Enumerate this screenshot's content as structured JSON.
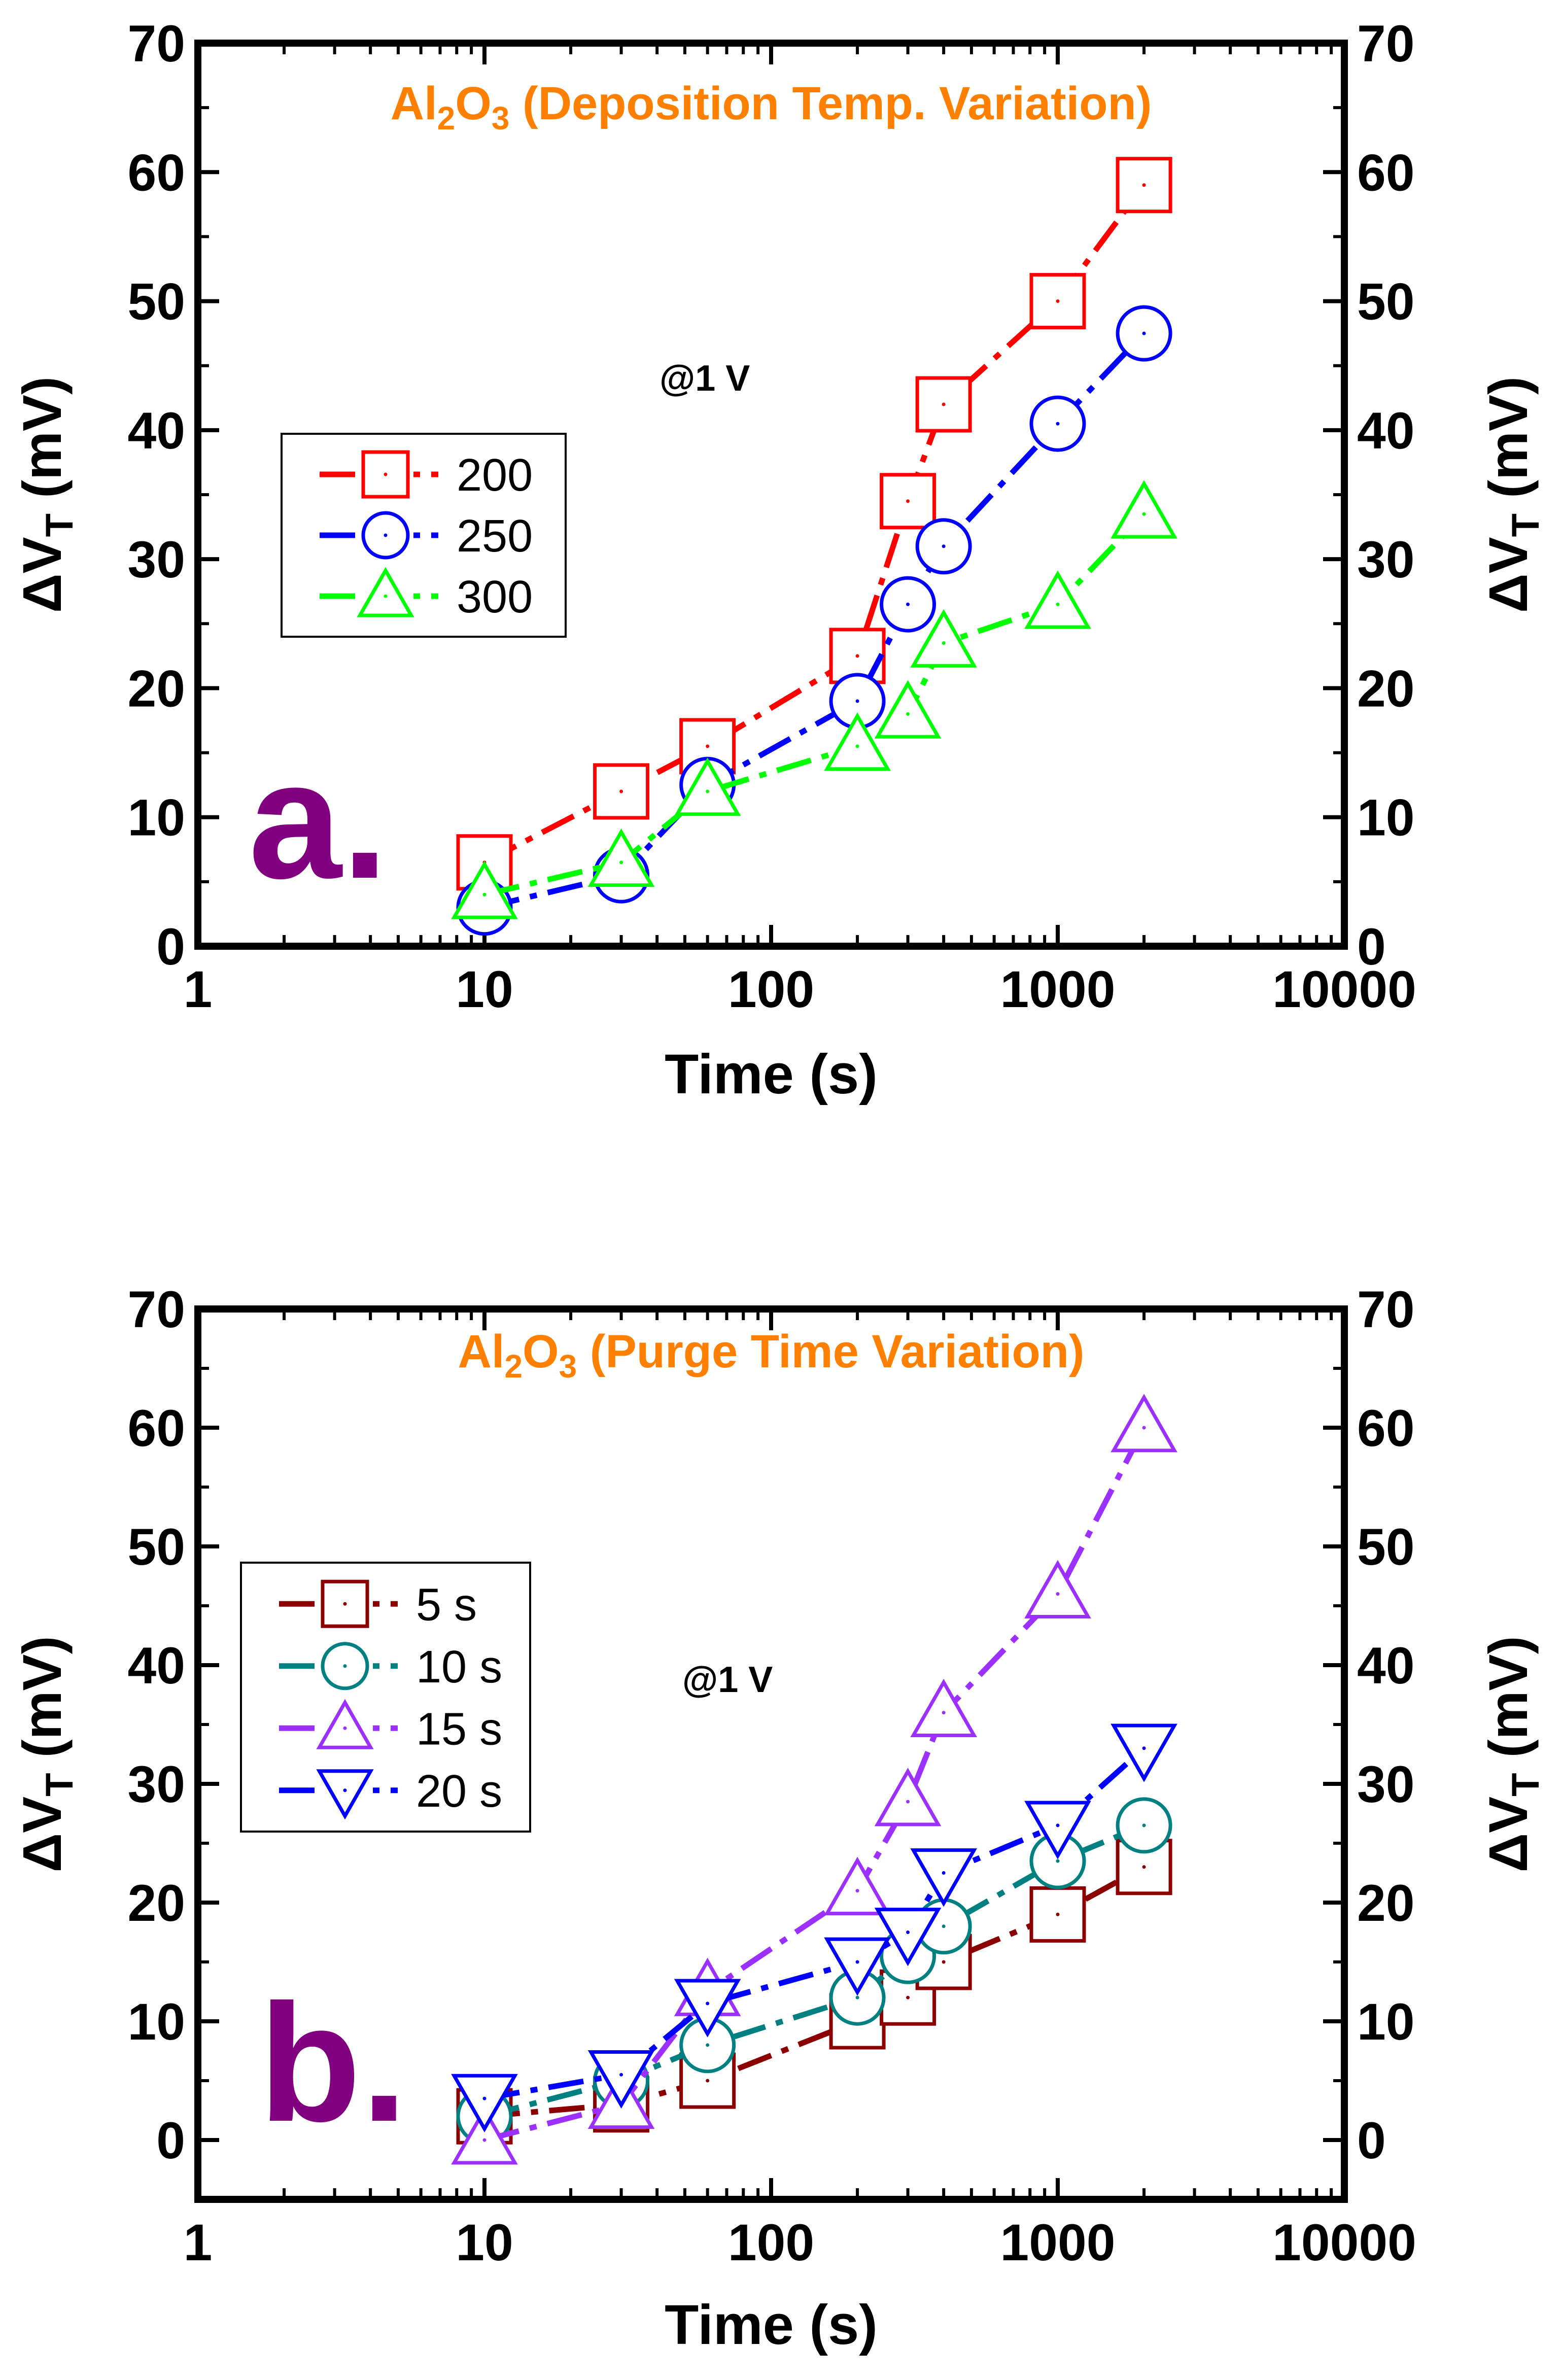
{
  "colors": {
    "axis": "#000000",
    "title": "#ff8000",
    "panel_label": "#800080"
  },
  "chart_data": [
    {
      "type": "line",
      "panel_label": "a.",
      "title_prefix": "Al",
      "title_sub1": "2",
      "title_mid": "O",
      "title_sub2": "3",
      "title_suffix": " (Deposition Temp. Variation)",
      "annotation": "@1 V",
      "xlabel": "Time (s)",
      "ylabel_main": "ΔV",
      "ylabel_sub": "T",
      "ylabel_units": " (mV)",
      "xscale": "log",
      "xlim": [
        1,
        10000
      ],
      "ylim": [
        0,
        70
      ],
      "x_ticks": [
        1,
        10,
        100,
        1000,
        10000
      ],
      "x_tick_labels": [
        "1",
        "10",
        "100",
        "1000",
        "10000"
      ],
      "y_ticks": [
        0,
        10,
        20,
        30,
        40,
        50,
        60,
        70
      ],
      "y_tick_labels": [
        "0",
        "10",
        "20",
        "30",
        "40",
        "50",
        "60",
        "70"
      ],
      "legend_position": "left",
      "series": [
        {
          "name": "200",
          "color": "#ff0000",
          "marker": "square",
          "x": [
            10,
            30,
            60,
            200,
            300,
            400,
            1000,
            2000
          ],
          "y": [
            6.5,
            12,
            15.5,
            22.5,
            34.5,
            42,
            50,
            59
          ]
        },
        {
          "name": "250",
          "color": "#0000ff",
          "marker": "circle",
          "x": [
            10,
            30,
            60,
            200,
            300,
            400,
            1000,
            2000
          ],
          "y": [
            3,
            5.5,
            12.5,
            19,
            26.5,
            31,
            40.5,
            47.5
          ]
        },
        {
          "name": "300",
          "color": "#00ff00",
          "marker": "triangle-up",
          "x": [
            10,
            30,
            60,
            200,
            300,
            400,
            1000,
            2000
          ],
          "y": [
            4,
            6.5,
            12,
            15.5,
            18,
            23.5,
            26.5,
            33.5
          ]
        }
      ]
    },
    {
      "type": "line",
      "panel_label": "b.",
      "title_prefix": "Al",
      "title_sub1": "2",
      "title_mid": "O",
      "title_sub2": "3",
      "title_suffix": " (Purge Time Variation)",
      "annotation": "@1 V",
      "xlabel": "Time (s)",
      "ylabel_main": "ΔV",
      "ylabel_sub": "T",
      "ylabel_units": " (mV)",
      "xscale": "log",
      "xlim": [
        1,
        10000
      ],
      "ylim": [
        -5,
        70
      ],
      "x_ticks": [
        1,
        10,
        100,
        1000,
        10000
      ],
      "x_tick_labels": [
        "1",
        "10",
        "100",
        "1000",
        "10000"
      ],
      "y_ticks": [
        0,
        10,
        20,
        30,
        40,
        50,
        60,
        70
      ],
      "y_tick_labels": [
        "0",
        "10",
        "20",
        "30",
        "40",
        "50",
        "60",
        "70"
      ],
      "legend_position": "left",
      "series": [
        {
          "name": "5 s",
          "color": "#8b0000",
          "marker": "square",
          "x": [
            10,
            30,
            60,
            200,
            300,
            400,
            1000,
            2000
          ],
          "y": [
            2,
            3,
            5,
            10,
            12,
            15,
            19,
            23
          ]
        },
        {
          "name": "10 s",
          "color": "#008080",
          "marker": "circle",
          "x": [
            10,
            30,
            60,
            200,
            300,
            400,
            1000,
            2000
          ],
          "y": [
            2,
            5,
            8,
            12,
            15.5,
            18,
            23.5,
            26.5
          ]
        },
        {
          "name": "15 s",
          "color": "#9b30ff",
          "marker": "triangle-up",
          "x": [
            10,
            30,
            60,
            200,
            300,
            400,
            1000,
            2000
          ],
          "y": [
            0,
            3,
            12.5,
            21,
            28.5,
            36,
            46,
            60
          ]
        },
        {
          "name": "20 s",
          "color": "#0000ff",
          "marker": "triangle-down",
          "x": [
            10,
            30,
            60,
            200,
            300,
            400,
            1000,
            2000
          ],
          "y": [
            3.5,
            5.5,
            11.5,
            15,
            17.5,
            22.5,
            26.5,
            33
          ]
        }
      ]
    }
  ]
}
